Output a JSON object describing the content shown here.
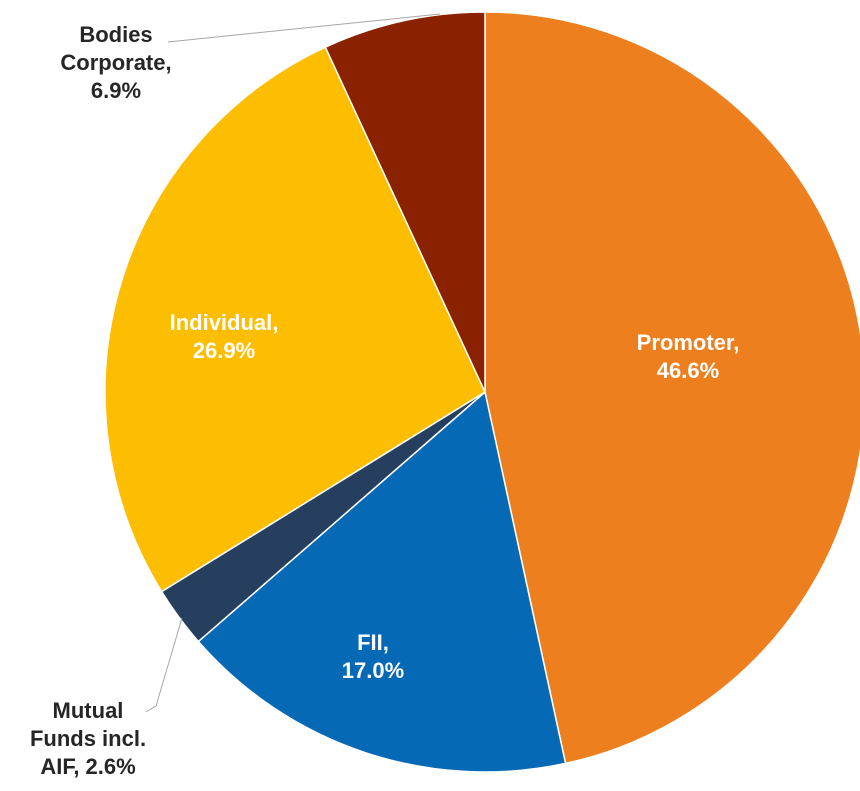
{
  "chart_data": {
    "type": "pie",
    "labels": [
      [
        "Promoter,",
        "46.6%"
      ],
      [
        "FII,",
        "17.0%"
      ],
      [
        "Mutual",
        "Funds incl.",
        "AIF, 2.6%"
      ],
      [
        "Individual,",
        "26.9%"
      ],
      [
        "Bodies",
        "Corporate,",
        "6.9%"
      ]
    ],
    "values": [
      46.6,
      17.0,
      2.6,
      26.9,
      6.9
    ],
    "colors": [
      "#ee7f1f",
      "#0569b5",
      "#263f5e",
      "#fdbd00",
      "#8a2200"
    ]
  }
}
